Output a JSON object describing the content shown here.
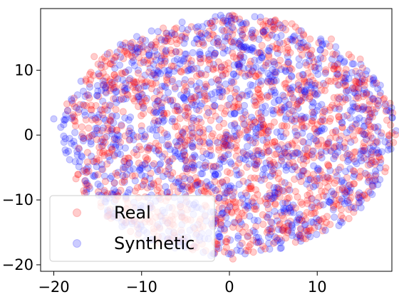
{
  "chart_data": {
    "type": "scatter",
    "title": "",
    "xlabel": "",
    "ylabel": "",
    "xlim": [
      -21.5,
      18.5
    ],
    "ylim": [
      -21,
      19.5
    ],
    "xticks": [
      -20,
      -10,
      0,
      10
    ],
    "xtick_labels": [
      "−20",
      "−10",
      "0",
      "10"
    ],
    "yticks": [
      10,
      0,
      -10,
      -20
    ],
    "ytick_labels": [
      "10",
      "0",
      "−10",
      "−20"
    ],
    "grid": false,
    "legend_position": "lower-left",
    "series": [
      {
        "name": "Real",
        "color": "#ff0000",
        "alpha": 0.2,
        "cluster_center": [
          3,
          2
        ],
        "points": [
          [
            -18.5,
            4.8
          ],
          [
            -17.8,
            3.1
          ],
          [
            -16.2,
            6.2
          ],
          [
            -15.4,
            12.1
          ],
          [
            -14.6,
            10.4
          ],
          [
            -13.5,
            4.5
          ],
          [
            -12.8,
            0.7
          ],
          [
            -12.1,
            -5.3
          ],
          [
            -11.2,
            13.7
          ],
          [
            -10.6,
            8.2
          ],
          [
            -9.8,
            3.3
          ],
          [
            -9.2,
            -2.1
          ],
          [
            -8.1,
            -7.1
          ],
          [
            -7.4,
            11.1
          ],
          [
            -6.2,
            7.4
          ],
          [
            -5.6,
            -0.4
          ],
          [
            -4.8,
            -5.2
          ],
          [
            -3.5,
            14.1
          ],
          [
            -2.7,
            9.3
          ],
          [
            -1.9,
            3.7
          ],
          [
            -1.1,
            -9.1
          ],
          [
            -0.3,
            16.2
          ],
          [
            0.8,
            11.8
          ],
          [
            1.5,
            6.1
          ],
          [
            2.3,
            1.2
          ],
          [
            3.1,
            -3.9
          ],
          [
            3.8,
            -12.3
          ],
          [
            4.6,
            15.4
          ],
          [
            5.2,
            9.6
          ],
          [
            5.9,
            4.3
          ],
          [
            6.7,
            -1.5
          ],
          [
            7.4,
            -6.8
          ],
          [
            8.1,
            13.2
          ],
          [
            8.8,
            8.1
          ],
          [
            9.4,
            2.2
          ],
          [
            10.2,
            -3.2
          ],
          [
            10.9,
            -8.7
          ],
          [
            11.6,
            14.8
          ],
          [
            12.3,
            10.1
          ],
          [
            12.9,
            5.1
          ],
          [
            13.5,
            -0.5
          ],
          [
            14.2,
            -5.6
          ],
          [
            14.9,
            11.7
          ],
          [
            15.6,
            6.4
          ],
          [
            16.1,
            1.3
          ],
          [
            16.7,
            -2.7
          ],
          [
            -3.1,
            -16.8
          ],
          [
            2.7,
            -16.2
          ],
          [
            6.1,
            -14.5
          ],
          [
            9.3,
            -12.1
          ],
          [
            -6.8,
            -13.1
          ],
          [
            0.4,
            -19.1
          ],
          [
            4.4,
            17.2
          ],
          [
            7.9,
            16.1
          ],
          [
            -0.8,
            17.4
          ]
        ]
      },
      {
        "name": "Synthetic",
        "color": "#0000ff",
        "alpha": 0.2,
        "cluster_center": [
          0,
          0
        ],
        "points": [
          [
            -20,
            2.5
          ],
          [
            -19.2,
            1.2
          ],
          [
            -18.7,
            -2.3
          ],
          [
            -17.6,
            0.4
          ],
          [
            -16.9,
            8.3
          ],
          [
            -16.1,
            -4.9
          ],
          [
            -15.3,
            2.6
          ],
          [
            -14.7,
            -7.9
          ],
          [
            -13.9,
            12.5
          ],
          [
            -13.2,
            7.1
          ],
          [
            -12.5,
            -1.8
          ],
          [
            -11.8,
            -9.4
          ],
          [
            -11.1,
            11.2
          ],
          [
            -10.4,
            5.9
          ],
          [
            -9.6,
            -4.4
          ],
          [
            -8.9,
            13.9
          ],
          [
            -8.3,
            0.8
          ],
          [
            -7.6,
            -11.6
          ],
          [
            -6.9,
            9.4
          ],
          [
            -6.1,
            -7.3
          ],
          [
            -5.4,
            15.1
          ],
          [
            -4.7,
            4.2
          ],
          [
            -4.1,
            -14.2
          ],
          [
            -3.3,
            12.4
          ],
          [
            -2.6,
            -2.9
          ],
          [
            -1.8,
            16.6
          ],
          [
            -1.2,
            7.8
          ],
          [
            -0.4,
            -12.7
          ],
          [
            0.5,
            14.3
          ],
          [
            1.1,
            -6.1
          ],
          [
            1.9,
            17.3
          ],
          [
            2.6,
            9.9
          ],
          [
            3.3,
            -15.8
          ],
          [
            4.1,
            3.4
          ],
          [
            4.8,
            -9.8
          ],
          [
            5.5,
            12.6
          ],
          [
            6.2,
            -4.6
          ],
          [
            6.9,
            7.2
          ],
          [
            7.7,
            -13.1
          ],
          [
            8.3,
            0.3
          ],
          [
            9.1,
            11.4
          ],
          [
            9.8,
            -7.7
          ],
          [
            10.5,
            4.7
          ],
          [
            11.3,
            -1.1
          ],
          [
            12.1,
            13.6
          ],
          [
            12.8,
            -10.2
          ],
          [
            13.6,
            8.7
          ],
          [
            14.3,
            -4.1
          ],
          [
            15.1,
            3.9
          ],
          [
            15.8,
            -7.2
          ],
          [
            16.4,
            5.5
          ],
          [
            16.9,
            0.6
          ],
          [
            -9.5,
            -16.2
          ],
          [
            -6.2,
            -17.4
          ],
          [
            -2.1,
            -18.6
          ],
          [
            1.3,
            -17.9
          ],
          [
            0.2,
            17.6
          ],
          [
            -10.5,
            -13.8
          ]
        ]
      }
    ]
  }
}
